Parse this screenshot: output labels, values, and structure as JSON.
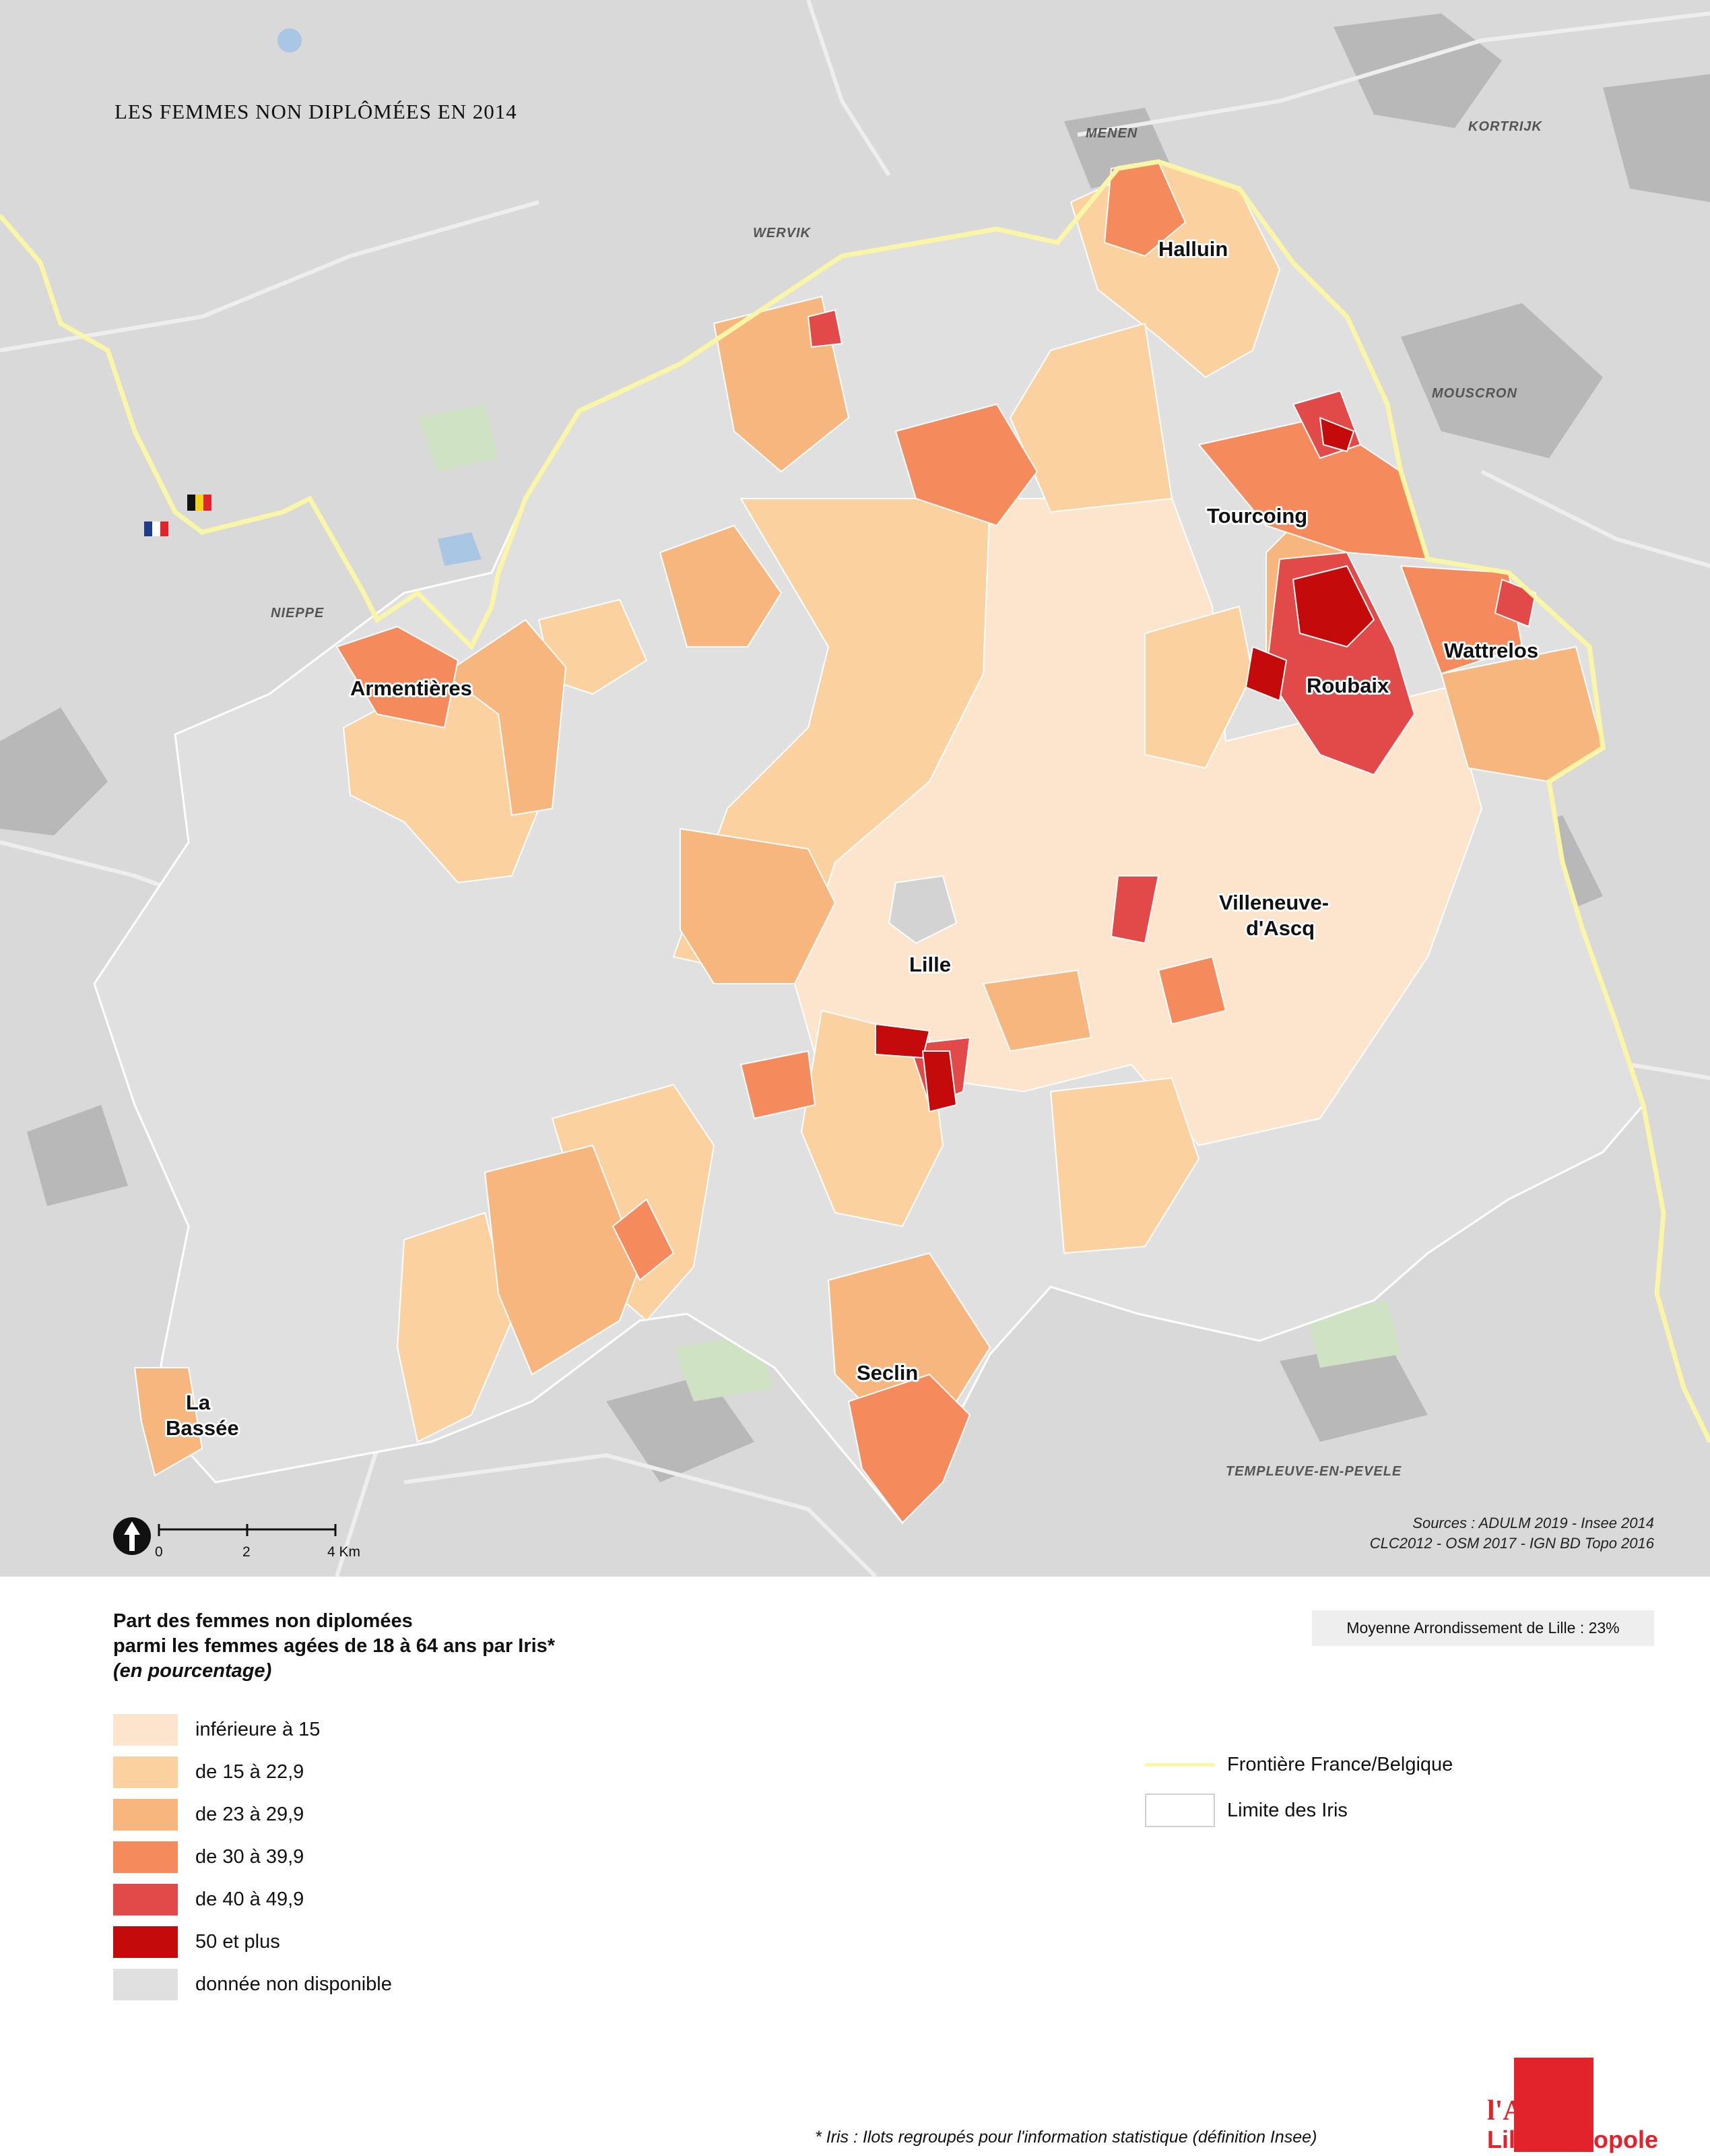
{
  "map": {
    "title": "LES FEMMES NON DIPLÔMÉES EN 2014",
    "cities": [
      "Halluin",
      "Tourcoing",
      "Armentières",
      "Wattrelos",
      "Roubaix",
      "Villeneuve-",
      "d'Ascq",
      "Lille",
      "Seclin",
      "La",
      "Bassée"
    ],
    "external_places": [
      "MENEN",
      "KORTRIJK",
      "WERVIK",
      "MOUSCRON",
      "NIEPPE",
      "TEMPLEUVE-EN-PEVELE"
    ],
    "sources": [
      "Sources : ADULM 2019 - Insee 2014",
      "CLC2012 -  OSM 2017 - IGN BD Topo 2016"
    ],
    "scale": {
      "ticks": [
        "0",
        "2",
        "4 Km"
      ]
    },
    "colors": {
      "background": "#d9d9d9",
      "no_data": "#e0e0e0",
      "border": "#faf6a8",
      "iris_line": "#ffffff"
    }
  },
  "legend": {
    "title_line1": "Part des femmes non diplomées",
    "title_line2": "parmi les femmes agées de 18 à 64 ans par Iris*",
    "unit": "(en pourcentage)",
    "classes": [
      {
        "label": "inférieure à 15",
        "color": "#fde4cc"
      },
      {
        "label": "de 15 à 22,9",
        "color": "#fbd1a0"
      },
      {
        "label": "de 23 à 29,9",
        "color": "#f8b67f"
      },
      {
        "label": "de 30 à 39,9",
        "color": "#f58a5c"
      },
      {
        "label": "de 40 à 49,9",
        "color": "#e24a4a"
      },
      {
        "label": "50 et plus",
        "color": "#c40a0a"
      },
      {
        "label": "donnée non disponible",
        "color": "#e0e0e0"
      }
    ],
    "lines": [
      {
        "label": "Frontière France/Belgique",
        "color": "#faf6a8"
      },
      {
        "label": "Limite des Iris",
        "color": "#ffffff"
      }
    ],
    "average": "Moyenne Arrondissement de Lille : 23%"
  },
  "footnote": "* Iris : Ilots regroupés pour l'information statistique (définition Insee)",
  "logo": {
    "line1": "l'Agence",
    "line2": "Lille Métropole"
  }
}
